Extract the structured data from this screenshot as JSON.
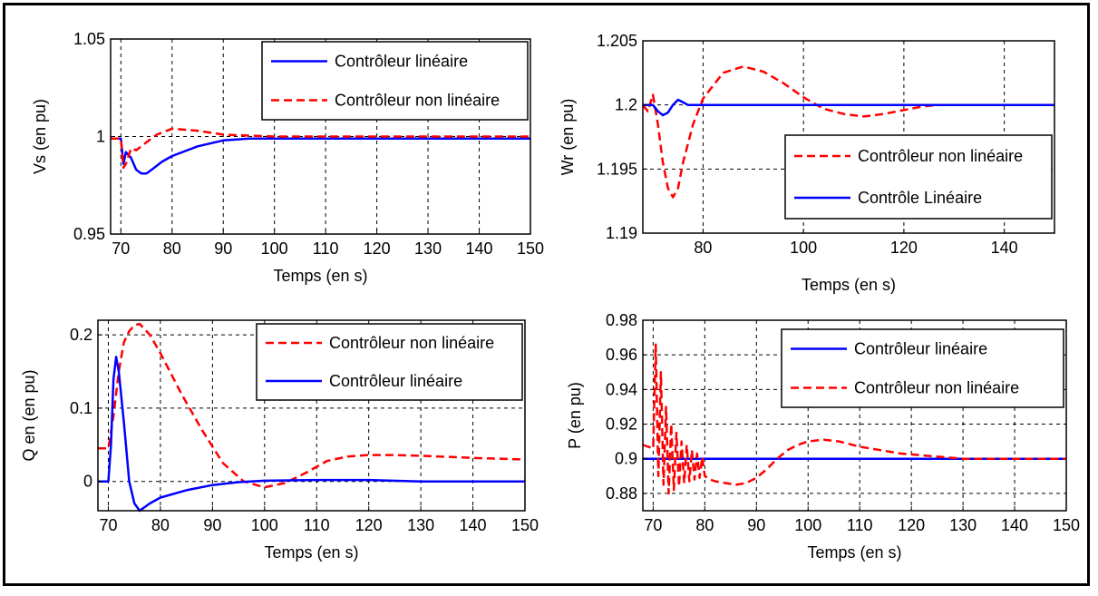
{
  "colors": {
    "linear": "#0000ff",
    "nonlinear": "#ff0000",
    "grid": "#000000",
    "axes": "#000000"
  },
  "chart_data": [
    {
      "type": "line",
      "id": "vs",
      "ylabel": "Vs (en pu)",
      "xlabel": "Temps (en s)",
      "xlim": [
        68,
        150
      ],
      "ylim": [
        0.95,
        1.05
      ],
      "xticks": [
        70,
        80,
        90,
        100,
        110,
        120,
        130,
        140,
        150
      ],
      "yticks": [
        0.95,
        1,
        1.05
      ],
      "ytick_labels": [
        "0.95",
        "1",
        "1.05"
      ],
      "grid": true,
      "legend_position": "top-right",
      "series": [
        {
          "name": "Contrôleur linéaire",
          "style": "solid",
          "x": [
            68,
            70,
            70.5,
            71,
            72,
            73,
            74,
            75,
            76,
            78,
            80,
            85,
            90,
            95,
            100,
            110,
            120,
            130,
            140,
            150
          ],
          "y": [
            0.999,
            0.999,
            0.986,
            0.992,
            0.989,
            0.983,
            0.981,
            0.981,
            0.983,
            0.987,
            0.99,
            0.995,
            0.998,
            0.999,
            0.999,
            0.999,
            0.999,
            0.999,
            0.999,
            0.999
          ]
        },
        {
          "name": "Contrôleur non linéaire",
          "style": "dashed",
          "x": [
            68,
            70,
            70.5,
            71,
            72,
            73,
            75,
            77,
            80,
            85,
            90,
            100,
            110,
            120,
            130,
            140,
            150
          ],
          "y": [
            0.999,
            0.999,
            0.984,
            0.986,
            0.994,
            0.993,
            0.997,
            1.001,
            1.004,
            1.003,
            1.001,
            1.0,
            1.0,
            1.0,
            1.0,
            1.0,
            1.0
          ]
        }
      ]
    },
    {
      "type": "line",
      "id": "wr",
      "ylabel": "Wr (en pu)",
      "xlabel": "Temps (en s)",
      "xlim": [
        68,
        150
      ],
      "ylim": [
        1.19,
        1.205
      ],
      "xticks": [
        80,
        100,
        120,
        140
      ],
      "yticks": [
        1.19,
        1.195,
        1.2,
        1.205
      ],
      "ytick_labels": [
        "1.19",
        "1.195",
        "1.2",
        "1.205"
      ],
      "grid": true,
      "legend_position": "bottom-right",
      "series": [
        {
          "name": "Contrôleur non linéaire",
          "style": "dashed",
          "x": [
            68,
            69,
            70,
            71,
            72,
            73,
            74,
            75,
            76,
            78,
            80,
            84,
            88,
            92,
            96,
            100,
            104,
            108,
            112,
            116,
            120,
            124,
            127
          ],
          "y": [
            1.2,
            1.1995,
            1.2008,
            1.1985,
            1.1955,
            1.1935,
            1.1928,
            1.1935,
            1.1955,
            1.1985,
            1.2005,
            1.2025,
            1.203,
            1.2026,
            1.2017,
            1.2006,
            1.1997,
            1.1993,
            1.1991,
            1.1993,
            1.1996,
            1.1999,
            1.2
          ]
        },
        {
          "name": "Contrôle Linéaire",
          "style": "solid",
          "x": [
            68,
            70,
            71,
            72,
            73,
            74,
            75,
            76,
            77,
            80,
            100,
            150
          ],
          "y": [
            1.2,
            1.2,
            1.1995,
            1.1992,
            1.1994,
            1.2,
            1.2004,
            1.2002,
            1.2,
            1.2,
            1.2,
            1.2
          ]
        }
      ]
    },
    {
      "type": "line",
      "id": "q",
      "ylabel": "Q en (en pu)",
      "xlabel": "Temps (en s)",
      "xlim": [
        68,
        150
      ],
      "ylim": [
        -0.04,
        0.22
      ],
      "xticks": [
        70,
        80,
        90,
        100,
        110,
        120,
        130,
        140,
        150
      ],
      "yticks": [
        0,
        0.1,
        0.2
      ],
      "ytick_labels": [
        "0",
        "0.1",
        "0.2"
      ],
      "grid": true,
      "legend_position": "top-right",
      "series": [
        {
          "name": "Contrôleur non linéaire",
          "style": "dashed",
          "x": [
            68,
            70,
            71,
            72,
            73,
            74,
            75,
            76,
            78,
            80,
            84,
            88,
            92,
            96,
            100,
            104,
            108,
            112,
            116,
            120,
            125,
            130,
            140,
            150
          ],
          "y": [
            0.045,
            0.045,
            0.09,
            0.15,
            0.19,
            0.205,
            0.213,
            0.215,
            0.2,
            0.175,
            0.12,
            0.07,
            0.025,
            0.0,
            -0.008,
            -0.002,
            0.012,
            0.028,
            0.034,
            0.036,
            0.036,
            0.035,
            0.032,
            0.03
          ]
        },
        {
          "name": "Contrôleur linéaire",
          "style": "solid",
          "x": [
            68,
            70,
            70.5,
            71,
            71.5,
            72,
            73,
            74,
            75,
            76,
            78,
            80,
            85,
            90,
            95,
            100,
            110,
            120,
            130,
            150
          ],
          "y": [
            0.0,
            0.0,
            0.05,
            0.14,
            0.17,
            0.15,
            0.08,
            0.0,
            -0.03,
            -0.04,
            -0.03,
            -0.022,
            -0.012,
            -0.005,
            -0.001,
            0.001,
            0.002,
            0.002,
            0.0,
            0.0
          ]
        }
      ]
    },
    {
      "type": "line",
      "id": "p",
      "ylabel": "P (en pu)",
      "xlabel": "Temps (en s)",
      "xlim": [
        68,
        150
      ],
      "ylim": [
        0.87,
        0.98
      ],
      "xticks": [
        70,
        80,
        90,
        100,
        110,
        120,
        130,
        140,
        150
      ],
      "yticks": [
        0.88,
        0.9,
        0.92,
        0.94,
        0.96,
        0.98
      ],
      "ytick_labels": [
        "0.88",
        "0.9",
        "0.92",
        "0.94",
        "0.96",
        "0.98"
      ],
      "grid": true,
      "legend_position": "top-right",
      "series": [
        {
          "name": "Contrôleur linéaire",
          "style": "solid",
          "x": [
            68,
            150
          ],
          "y": [
            0.9,
            0.9
          ]
        },
        {
          "name": "Contrôleur non linéaire",
          "style": "dashed",
          "x": [
            68,
            70,
            70.5,
            71,
            71.5,
            72,
            72.5,
            73,
            73.5,
            74,
            74.5,
            75,
            75.5,
            76,
            76.5,
            77,
            77.5,
            78,
            78.5,
            79,
            79.5,
            80,
            81,
            82,
            84,
            86,
            88,
            90,
            92,
            94,
            96,
            98,
            100,
            103,
            106,
            110,
            114,
            118,
            122,
            126,
            130,
            140,
            150
          ],
          "y": [
            0.908,
            0.906,
            0.966,
            0.89,
            0.95,
            0.885,
            0.93,
            0.88,
            0.92,
            0.882,
            0.915,
            0.884,
            0.91,
            0.886,
            0.908,
            0.887,
            0.905,
            0.888,
            0.903,
            0.889,
            0.901,
            0.89,
            0.888,
            0.887,
            0.886,
            0.885,
            0.886,
            0.889,
            0.894,
            0.9,
            0.905,
            0.908,
            0.91,
            0.911,
            0.91,
            0.907,
            0.905,
            0.903,
            0.902,
            0.901,
            0.9,
            0.9,
            0.9
          ]
        }
      ]
    }
  ]
}
